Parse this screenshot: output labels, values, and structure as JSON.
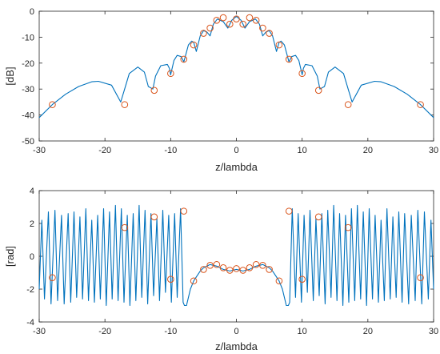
{
  "chart_data": [
    {
      "type": "line",
      "title": "",
      "xlabel": "z/lambda",
      "ylabel": "[dB]",
      "xlim": [
        -30,
        30
      ],
      "ylim": [
        -50,
        0
      ],
      "xticks": [
        "-30",
        "-20",
        "-10",
        "0",
        "10",
        "20",
        "30"
      ],
      "yticks": [
        "0",
        "-10",
        "-20",
        "-30",
        "-40",
        "-50"
      ],
      "grid": false,
      "legend": "none",
      "colors": {
        "line": "#0072BD",
        "marker": "#D95319"
      },
      "series": [
        {
          "style": "line",
          "x": [
            -30,
            -28,
            -26,
            -24,
            -22,
            -21,
            -19,
            -17.6,
            -17,
            -16.3,
            -15,
            -14,
            -13.4,
            -12.7,
            -12.3,
            -11.5,
            -10.5,
            -10.2,
            -10.0,
            -9.5,
            -9.0,
            -8.4,
            -8.0,
            -7.3,
            -6.8,
            -6.5,
            -6.1,
            -5.5,
            -5.0,
            -4.5,
            -4.0,
            -3.5,
            -2.9,
            -2.5,
            -2.0,
            -1.3,
            -0.7,
            0,
            0.7,
            1.3,
            2.0,
            2.5,
            2.9,
            3.5,
            4.0,
            4.5,
            5.0,
            5.5,
            6.1,
            6.5,
            6.8,
            7.3,
            8.0,
            8.4,
            9.0,
            9.5,
            10.0,
            10.2,
            10.5,
            11.5,
            12.3,
            12.7,
            13.4,
            14,
            15,
            16.3,
            17,
            17.6,
            19,
            21,
            22,
            24,
            26,
            28,
            30
          ],
          "values": [
            -41,
            -36,
            -32,
            -29,
            -27.2,
            -27,
            -28.5,
            -35,
            -30,
            -24,
            -21.5,
            -23.5,
            -29,
            -30,
            -25,
            -21,
            -20.5,
            -22,
            -24.5,
            -19,
            -17,
            -17.5,
            -19.5,
            -13,
            -11.5,
            -12,
            -15.5,
            -9.5,
            -7.5,
            -8,
            -9.5,
            -5,
            -3,
            -3.5,
            -4,
            -6.5,
            -3.5,
            -2,
            -3.5,
            -6.5,
            -4,
            -3.5,
            -3,
            -5,
            -9.5,
            -8,
            -7.5,
            -9.5,
            -15.5,
            -12,
            -11.5,
            -13,
            -19.5,
            -17.5,
            -17,
            -19,
            -24.5,
            -22,
            -20.5,
            -21,
            -25,
            -30,
            -29,
            -23.5,
            -21.5,
            -24,
            -30,
            -35,
            -28.5,
            -27,
            -27.2,
            -29,
            -32,
            -36,
            -41
          ]
        },
        {
          "style": "markers",
          "x": [
            -28,
            -17,
            -12.5,
            -10,
            -8,
            -6.5,
            -5,
            -4,
            -3,
            -2,
            -1,
            0,
            1,
            2,
            3,
            4,
            5,
            6.5,
            8,
            10,
            12.5,
            17,
            28
          ],
          "values": [
            -36,
            -36,
            -30.5,
            -24,
            -18.5,
            -13,
            -8.5,
            -6.5,
            -3.5,
            -2.5,
            -5,
            -3,
            -5,
            -2.5,
            -3.5,
            -6.5,
            -8.5,
            -13,
            -18.5,
            -24,
            -30.5,
            -36,
            -36
          ]
        }
      ]
    },
    {
      "type": "line",
      "title": "",
      "xlabel": "z/lambda",
      "ylabel": "[rad]",
      "xlim": [
        -30,
        30
      ],
      "ylim": [
        -4,
        4
      ],
      "xticks": [
        "-30",
        "-20",
        "-10",
        "0",
        "10",
        "20",
        "30"
      ],
      "yticks": [
        "4",
        "2",
        "0",
        "-2",
        "-4"
      ],
      "grid": false,
      "legend": "none",
      "colors": {
        "line": "#0072BD",
        "marker": "#D95319"
      },
      "series": [
        {
          "style": "line",
          "x": [
            -30,
            -29.6,
            -29.2,
            -28.6,
            -28.2,
            -27.6,
            -27.2,
            -26.6,
            -26.2,
            -25.6,
            -25.2,
            -24.7,
            -24.3,
            -23.8,
            -23.4,
            -22.9,
            -22.5,
            -22.0,
            -21.6,
            -21.1,
            -20.7,
            -20.2,
            -19.8,
            -19.3,
            -18.9,
            -18.4,
            -18.0,
            -17.5,
            -17.1,
            -16.6,
            -16.2,
            -15.7,
            -15.3,
            -14.8,
            -14.4,
            -13.9,
            -13.5,
            -13.0,
            -12.6,
            -12.1,
            -11.7,
            -11.2,
            -10.8,
            -10.3,
            -9.9,
            -9.4,
            -9.0,
            -8.5,
            -8.1,
            -7.9,
            -7.6,
            -7.0,
            -6.5,
            -6.0,
            -5.5,
            -5.0,
            -4.0,
            -3.0,
            -2.0,
            -1.0,
            0,
            1.0,
            2.0,
            3.0,
            4.0,
            5.0,
            5.5,
            6.0,
            6.5,
            7.0,
            7.6,
            7.9,
            8.1,
            8.5,
            9.0,
            9.4,
            9.9,
            10.3,
            10.8,
            11.2,
            11.7,
            12.1,
            12.6,
            13.0,
            13.5,
            13.9,
            14.4,
            14.8,
            15.3,
            15.7,
            16.2,
            16.6,
            17.1,
            17.5,
            18.0,
            18.4,
            18.9,
            19.3,
            19.8,
            20.2,
            20.7,
            21.1,
            21.6,
            22.0,
            22.5,
            22.9,
            23.4,
            23.8,
            24.3,
            24.7,
            25.2,
            25.6,
            26.2,
            26.6,
            27.2,
            27.6,
            28.2,
            28.6,
            29.2,
            29.6,
            30
          ],
          "values": [
            -2.0,
            2.2,
            -2.6,
            2.7,
            -2.9,
            2.8,
            -2.7,
            2.5,
            -2.9,
            2.6,
            -2.8,
            2.7,
            -2.5,
            2.4,
            -2.6,
            2.9,
            -2.7,
            2.2,
            -2.8,
            2.5,
            -2.6,
            2.9,
            -3.0,
            2.7,
            -2.6,
            3.1,
            -2.7,
            2.9,
            -2.8,
            2.5,
            -3.0,
            2.6,
            -2.7,
            3.1,
            -2.5,
            2.8,
            -2.9,
            2.6,
            -2.4,
            2.3,
            -2.7,
            2.8,
            -2.2,
            2.5,
            -2.8,
            2.6,
            -2.5,
            2.9,
            -2.8,
            -3.0,
            -3.0,
            -2.0,
            -1.5,
            -1.2,
            -0.9,
            -0.7,
            -0.5,
            -0.6,
            -0.8,
            -0.9,
            -0.8,
            -0.9,
            -0.8,
            -0.6,
            -0.5,
            -0.7,
            -0.9,
            -1.2,
            -1.5,
            -2.0,
            -3.0,
            -3.0,
            -2.8,
            2.9,
            -2.5,
            2.6,
            -2.8,
            2.5,
            -2.2,
            2.8,
            -2.7,
            2.3,
            -2.4,
            2.6,
            -2.9,
            2.8,
            -2.5,
            3.1,
            -2.7,
            2.6,
            -3.0,
            2.5,
            -2.8,
            2.9,
            -2.7,
            3.1,
            -2.6,
            2.7,
            -3.0,
            2.9,
            -2.6,
            2.5,
            -2.8,
            2.2,
            -2.7,
            2.9,
            -2.6,
            2.4,
            -2.5,
            2.7,
            -2.8,
            2.6,
            -2.9,
            2.5,
            -2.7,
            2.8,
            -2.9,
            2.7,
            -2.6,
            2.2,
            -2.0
          ]
        },
        {
          "style": "markers",
          "x": [
            -28,
            -17,
            -12.5,
            -10,
            -8,
            -6.5,
            -5,
            -4,
            -3,
            -2,
            -1,
            0,
            1,
            2,
            3,
            4,
            5,
            6.5,
            8,
            10,
            12.5,
            17,
            28
          ],
          "values": [
            -1.3,
            1.75,
            2.4,
            -1.4,
            2.75,
            -1.5,
            -0.8,
            -0.55,
            -0.5,
            -0.7,
            -0.85,
            -0.75,
            -0.85,
            -0.7,
            -0.5,
            -0.55,
            -0.8,
            -1.5,
            2.75,
            -1.4,
            2.4,
            1.75,
            -1.3
          ]
        }
      ]
    }
  ]
}
